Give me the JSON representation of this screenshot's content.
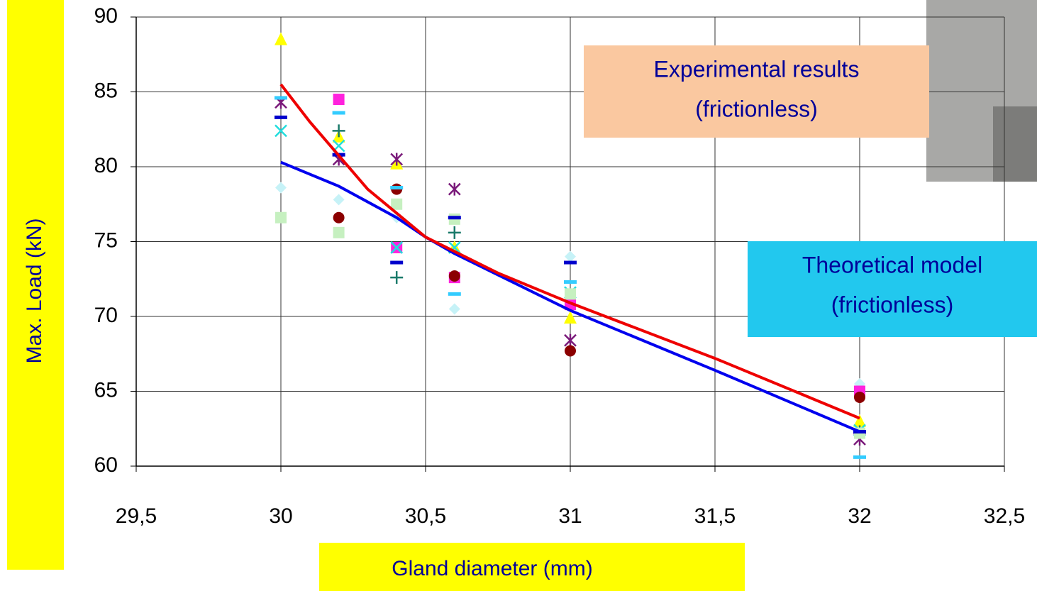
{
  "chart_data": {
    "type": "scatter",
    "xlabel": "Gland diameter (mm)",
    "ylabel": "Max. Load (kN)",
    "xlim": [
      29.5,
      32.5
    ],
    "ylim": [
      60,
      90
    ],
    "xticks": [
      {
        "value": 29.5,
        "label": "29,5"
      },
      30,
      {
        "value": 30.5,
        "label": "30,5"
      },
      31,
      {
        "value": 31.5,
        "label": "31,5"
      },
      32,
      {
        "value": 32.5,
        "label": "32,5"
      }
    ],
    "yticks": [
      60,
      65,
      70,
      75,
      80,
      85,
      90
    ],
    "grid": true,
    "series": [
      {
        "marker": "diamond",
        "color": "#c6f2f7",
        "x": [
          30,
          30.2,
          30.4,
          30.6,
          31,
          32
        ],
        "values": [
          78.6,
          77.8,
          76.6,
          70.5,
          74,
          65.5
        ]
      },
      {
        "marker": "square",
        "color": "#ff22dd",
        "x": [
          30,
          30.2,
          30.4,
          30.6,
          31,
          32
        ],
        "values": [
          null,
          84.5,
          74.6,
          72.6,
          70.8,
          65
        ]
      },
      {
        "marker": "triangle",
        "color": "#ffff00",
        "x": [
          30,
          30.2,
          30.4,
          30.6,
          31,
          32
        ],
        "values": [
          88.5,
          82,
          80.2,
          74.6,
          69.9,
          63
        ]
      },
      {
        "marker": "x",
        "color": "#22dddd",
        "x": [
          30,
          30.2,
          30.4,
          30.6,
          31,
          32
        ],
        "values": [
          82.4,
          81.4,
          74.6,
          74.6,
          71.6,
          62.4
        ]
      },
      {
        "marker": "asterisk",
        "color": "#7a1a7a",
        "x": [
          30,
          30.2,
          30.4,
          30.6,
          31,
          32
        ],
        "values": [
          84.3,
          80.5,
          80.5,
          78.5,
          68.4,
          61.8
        ]
      },
      {
        "marker": "circle",
        "color": "#8b0000",
        "x": [
          30,
          30.2,
          30.4,
          30.6,
          31,
          32
        ],
        "values": [
          null,
          76.6,
          78.5,
          72.7,
          67.7,
          64.6
        ]
      },
      {
        "marker": "plus",
        "color": "#1a7a6a",
        "x": [
          30,
          30.2,
          30.4,
          30.6,
          31,
          32
        ],
        "values": [
          null,
          82.4,
          72.6,
          75.6,
          null,
          62.3
        ]
      },
      {
        "marker": "square",
        "color": "#c6f0c0",
        "x": [
          30,
          30.2,
          30.4,
          30.6,
          31,
          32
        ],
        "values": [
          76.6,
          75.6,
          77.5,
          76.5,
          71.5,
          62.2
        ]
      },
      {
        "marker": "dash",
        "color": "#0000cc",
        "x": [
          30,
          30.2,
          30.4,
          30.6,
          31,
          32
        ],
        "values": [
          83.3,
          80.8,
          73.6,
          76.6,
          73.6,
          62.3
        ]
      },
      {
        "marker": "dash",
        "color": "#33ccff",
        "x": [
          30,
          30.2,
          30.4,
          30.6,
          31,
          32
        ],
        "values": [
          84.6,
          83.6,
          78.6,
          71.5,
          72.3,
          60.6
        ]
      },
      {
        "marker": "line",
        "color": "#0000ee",
        "x": [
          30,
          30.2,
          30.4,
          30.5,
          30.6,
          31,
          31.5,
          32
        ],
        "values": [
          80.3,
          78.7,
          76.6,
          75.3,
          74.2,
          70.4,
          66.4,
          62.3
        ]
      },
      {
        "marker": "line",
        "color": "#ee0000",
        "x": [
          30,
          30.1,
          30.3,
          30.5,
          30.75,
          31,
          31.5,
          32
        ],
        "values": [
          85.5,
          83,
          78.5,
          75.3,
          72.9,
          70.9,
          67.2,
          63.2
        ]
      }
    ],
    "annotations": [
      {
        "lines": [
          "Experimental results",
          "(frictionless)"
        ],
        "color": "#fac8a0"
      },
      {
        "lines": [
          "Theoretical model",
          "(frictionless)"
        ],
        "color": "#22c8ee"
      }
    ]
  }
}
